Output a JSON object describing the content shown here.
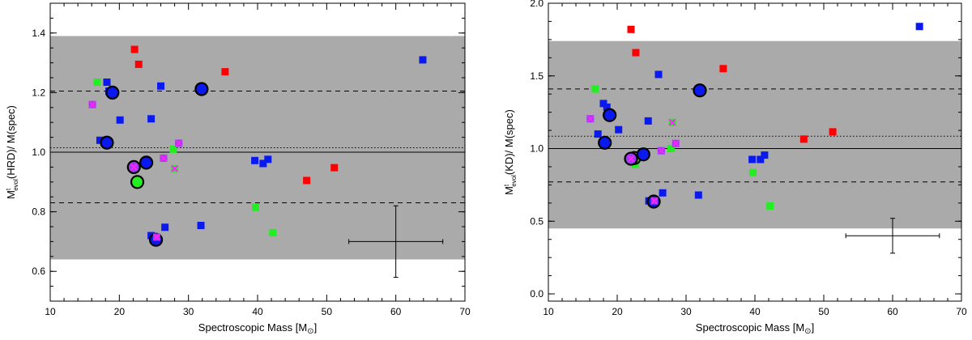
{
  "colors": {
    "band": "#aaaaaa",
    "red": "#ff0000",
    "green": "#22ee22",
    "blue": "#0a1aee",
    "purple": "#9b3cf0",
    "cross": "#ff22ff",
    "axis": "#000000"
  },
  "chart_data": [
    {
      "type": "scatter",
      "id": "hrd",
      "xlabel": "Spectroscopic Mass [M",
      "xlabel_sub": "⊙",
      "xlabel_tail": "]",
      "ylabel_pre": "M",
      "ylabel_sup": "t",
      "ylabel_sub": "evol",
      "ylabel_post": "(HRD)/  M(spec)",
      "xlim": [
        10,
        70
      ],
      "ylim": [
        0.5,
        1.5
      ],
      "xticks": [
        10,
        20,
        30,
        40,
        50,
        60,
        70
      ],
      "yticks": [
        0.6,
        0.8,
        1.0,
        1.2,
        1.4
      ],
      "ytick_labels": [
        "0.6",
        "0.8",
        "1.0",
        "1.2",
        "1.4"
      ],
      "band": [
        0.64,
        1.39
      ],
      "hlines": {
        "solid": 1.0,
        "dotted": 1.015,
        "dashed": [
          0.83,
          1.205
        ]
      },
      "errorbar": {
        "x": 60,
        "y": 0.7,
        "xerr": [
          53.2,
          66.8
        ],
        "yerr": [
          0.58,
          0.82
        ]
      },
      "points": [
        {
          "x": 22.2,
          "y": 1.345,
          "c": "red"
        },
        {
          "x": 22.8,
          "y": 1.295,
          "c": "red"
        },
        {
          "x": 35.3,
          "y": 1.27,
          "c": "red"
        },
        {
          "x": 47.1,
          "y": 0.905,
          "c": "red"
        },
        {
          "x": 51.1,
          "y": 0.948,
          "c": "red"
        },
        {
          "x": 16.8,
          "y": 1.235,
          "c": "green"
        },
        {
          "x": 27.8,
          "y": 1.01,
          "c": "green"
        },
        {
          "x": 28.0,
          "y": 0.945,
          "c": "green",
          "cross": true
        },
        {
          "x": 39.7,
          "y": 0.815,
          "c": "green"
        },
        {
          "x": 42.2,
          "y": 0.73,
          "c": "green"
        },
        {
          "x": 22.6,
          "y": 0.9,
          "c": "green",
          "ring": true
        },
        {
          "x": 18.2,
          "y": 1.235,
          "c": "blue"
        },
        {
          "x": 18.5,
          "y": 1.205,
          "c": "blue"
        },
        {
          "x": 19.0,
          "y": 1.2,
          "c": "blue",
          "ring": true
        },
        {
          "x": 17.2,
          "y": 1.04,
          "c": "blue"
        },
        {
          "x": 18.2,
          "y": 1.032,
          "c": "blue",
          "ring": true
        },
        {
          "x": 20.1,
          "y": 1.108,
          "c": "blue"
        },
        {
          "x": 24.6,
          "y": 1.112,
          "c": "blue"
        },
        {
          "x": 26.0,
          "y": 1.222,
          "c": "blue"
        },
        {
          "x": 31.9,
          "y": 1.212,
          "c": "blue",
          "ring": true
        },
        {
          "x": 23.9,
          "y": 0.965,
          "c": "blue",
          "ring": true
        },
        {
          "x": 24.6,
          "y": 0.72,
          "c": "blue"
        },
        {
          "x": 26.6,
          "y": 0.748,
          "c": "blue"
        },
        {
          "x": 25.3,
          "y": 0.706,
          "c": "blue",
          "ring": true
        },
        {
          "x": 31.8,
          "y": 0.754,
          "c": "blue"
        },
        {
          "x": 39.6,
          "y": 0.972,
          "c": "blue"
        },
        {
          "x": 40.8,
          "y": 0.962,
          "c": "blue"
        },
        {
          "x": 41.5,
          "y": 0.976,
          "c": "blue"
        },
        {
          "x": 63.9,
          "y": 1.31,
          "c": "blue"
        },
        {
          "x": 16.1,
          "y": 1.16,
          "c": "purple",
          "cross": true
        },
        {
          "x": 26.4,
          "y": 0.98,
          "c": "purple",
          "cross": true
        },
        {
          "x": 28.6,
          "y": 1.03,
          "c": "purple",
          "cross": true
        },
        {
          "x": 22.1,
          "y": 0.95,
          "c": "purple",
          "cross": true,
          "ring": true
        },
        {
          "x": 25.4,
          "y": 0.715,
          "c": "purple",
          "cross": true
        }
      ]
    },
    {
      "type": "scatter",
      "id": "kd",
      "xlabel": "Spectroscopic Mass [M",
      "xlabel_sub": "⊙",
      "xlabel_tail": "]",
      "ylabel_pre": "M",
      "ylabel_sup": "t",
      "ylabel_sub": "evol",
      "ylabel_post": "(KD)/  M(spec)",
      "xlim": [
        10,
        70
      ],
      "ylim": [
        -0.05,
        2.0
      ],
      "xticks": [
        10,
        20,
        30,
        40,
        50,
        60,
        70
      ],
      "yticks": [
        0.0,
        0.5,
        1.0,
        1.5,
        2.0
      ],
      "ytick_labels": [
        "0.0",
        "0.5",
        "1.0",
        "1.5",
        "2.0"
      ],
      "band": [
        0.45,
        1.74
      ],
      "hlines": {
        "solid": 1.0,
        "dotted": 1.085,
        "dashed": [
          0.77,
          1.41
        ]
      },
      "errorbar": {
        "x": 60,
        "y": 0.4,
        "xerr": [
          53.2,
          66.8
        ],
        "yerr": [
          0.28,
          0.52
        ]
      },
      "points": [
        {
          "x": 22.0,
          "y": 1.82,
          "c": "red"
        },
        {
          "x": 22.7,
          "y": 1.66,
          "c": "red"
        },
        {
          "x": 35.4,
          "y": 1.55,
          "c": "red"
        },
        {
          "x": 47.1,
          "y": 1.065,
          "c": "red"
        },
        {
          "x": 51.3,
          "y": 1.115,
          "c": "red"
        },
        {
          "x": 16.8,
          "y": 1.41,
          "c": "green"
        },
        {
          "x": 28.0,
          "y": 1.18,
          "c": "green",
          "cross": true
        },
        {
          "x": 27.8,
          "y": 1.0,
          "c": "green"
        },
        {
          "x": 22.6,
          "y": 0.89,
          "c": "green"
        },
        {
          "x": 39.7,
          "y": 0.835,
          "c": "green"
        },
        {
          "x": 42.2,
          "y": 0.605,
          "c": "green"
        },
        {
          "x": 22.5,
          "y": 0.935,
          "c": "green",
          "ring": true
        },
        {
          "x": 18.0,
          "y": 1.31,
          "c": "blue"
        },
        {
          "x": 18.5,
          "y": 1.285,
          "c": "blue"
        },
        {
          "x": 18.9,
          "y": 1.23,
          "c": "blue",
          "ring": true
        },
        {
          "x": 17.2,
          "y": 1.1,
          "c": "blue"
        },
        {
          "x": 20.2,
          "y": 1.13,
          "c": "blue"
        },
        {
          "x": 18.2,
          "y": 1.04,
          "c": "blue",
          "ring": true
        },
        {
          "x": 24.5,
          "y": 1.19,
          "c": "blue"
        },
        {
          "x": 26.0,
          "y": 1.51,
          "c": "blue"
        },
        {
          "x": 32.0,
          "y": 1.4,
          "c": "blue",
          "ring": true
        },
        {
          "x": 23.8,
          "y": 0.96,
          "c": "blue",
          "ring": true
        },
        {
          "x": 26.6,
          "y": 0.695,
          "c": "blue"
        },
        {
          "x": 24.6,
          "y": 0.64,
          "c": "blue"
        },
        {
          "x": 25.3,
          "y": 0.635,
          "c": "blue",
          "ring": true
        },
        {
          "x": 31.8,
          "y": 0.68,
          "c": "blue"
        },
        {
          "x": 39.6,
          "y": 0.925,
          "c": "blue"
        },
        {
          "x": 40.8,
          "y": 0.925,
          "c": "blue"
        },
        {
          "x": 41.4,
          "y": 0.955,
          "c": "blue"
        },
        {
          "x": 63.9,
          "y": 1.84,
          "c": "blue"
        },
        {
          "x": 16.1,
          "y": 1.205,
          "c": "purple",
          "cross": true
        },
        {
          "x": 26.4,
          "y": 0.985,
          "c": "purple",
          "cross": true
        },
        {
          "x": 28.5,
          "y": 1.035,
          "c": "purple",
          "cross": true
        },
        {
          "x": 22.0,
          "y": 0.93,
          "c": "purple",
          "cross": true,
          "ring": true
        },
        {
          "x": 25.4,
          "y": 0.64,
          "c": "purple",
          "cross": true
        }
      ]
    }
  ]
}
